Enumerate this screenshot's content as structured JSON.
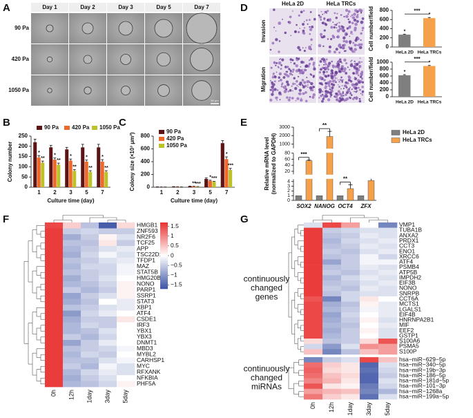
{
  "panel_labels": {
    "a": "A",
    "b": "B",
    "c": "C",
    "d": "D",
    "e": "E",
    "f": "F",
    "g": "G"
  },
  "panel_a": {
    "columns": [
      "Day 1",
      "Day 2",
      "Day 3",
      "Day 5",
      "Day 7"
    ],
    "rows": [
      "90 Pa",
      "420 Pa",
      "1050 Pa"
    ],
    "scale_bar": "50 μm"
  },
  "panel_d_images": {
    "columns": [
      "HeLa 2D",
      "HeLa TRCs"
    ],
    "rows": [
      "Invasion",
      "Migration"
    ]
  },
  "chart_data": [
    {
      "type": "bar",
      "ylabel": "Colony number",
      "xlabel": "Culture time (day)",
      "categories": [
        "1",
        "2",
        "3",
        "5",
        "7"
      ],
      "ylim": [
        0,
        250
      ],
      "yticks": [
        0,
        50,
        100,
        150,
        200,
        250
      ],
      "legend": "top-row",
      "series": [
        {
          "name": "90 Pa",
          "color": "#5c1414",
          "values": [
            220,
            195,
            185,
            195,
            195
          ],
          "errors": [
            15,
            10,
            10,
            15,
            15
          ]
        },
        {
          "name": "420 Pa",
          "color": "#ee6a2c",
          "values": [
            145,
            135,
            130,
            125,
            125
          ],
          "errors": [
            10,
            8,
            8,
            8,
            10
          ],
          "significance": [
            "*",
            "*",
            "*",
            "*",
            "*"
          ]
        },
        {
          "name": "1050 Pa",
          "color": "#bcc22c",
          "values": [
            120,
            110,
            80,
            75,
            75
          ],
          "errors": [
            8,
            8,
            6,
            6,
            6
          ],
          "significance": [
            "**",
            "**",
            "**",
            "**",
            "**"
          ]
        }
      ]
    },
    {
      "type": "bar",
      "ylabel": "Colony size (×10³ μm²)",
      "xlabel": "Culture time (day)",
      "categories": [
        "1",
        "2",
        "3",
        "5",
        "7"
      ],
      "ylim": [
        0,
        800
      ],
      "yticks": [
        0,
        200,
        400,
        600,
        800
      ],
      "legend": "top-left",
      "series": [
        {
          "name": "90 Pa",
          "color": "#5c1414",
          "values": [
            5,
            8,
            15,
            130,
            690
          ],
          "errors": [
            2,
            2,
            3,
            15,
            40
          ]
        },
        {
          "name": "420 Pa",
          "color": "#ee6a2c",
          "values": [
            4,
            7,
            12,
            100,
            440
          ],
          "errors": [
            1,
            2,
            3,
            10,
            35
          ],
          "significance": [
            null,
            null,
            "**",
            "*",
            "*"
          ]
        },
        {
          "name": "1050 Pa",
          "color": "#bcc22c",
          "values": [
            3,
            5,
            9,
            85,
            270
          ],
          "errors": [
            1,
            1,
            2,
            8,
            25
          ],
          "significance": [
            null,
            null,
            "***",
            "***",
            "***"
          ]
        }
      ]
    },
    {
      "type": "bar",
      "ylabel": "Cell number/field",
      "categories": [
        "HeLa 2D",
        "HeLa TRCs"
      ],
      "values": [
        270,
        630
      ],
      "errors": [
        10,
        15
      ],
      "colors": [
        "#7f7f7f",
        "#f5a04a"
      ],
      "ylim": [
        0,
        800
      ],
      "yticks": [
        0,
        200,
        400,
        600,
        800
      ],
      "significance": "***"
    },
    {
      "type": "bar",
      "ylabel": "Cell number/field",
      "categories": [
        "HeLa 2D",
        "HeLa TRCs"
      ],
      "values": [
        620,
        890
      ],
      "errors": [
        20,
        15
      ],
      "colors": [
        "#7f7f7f",
        "#f5a04a"
      ],
      "ylim": [
        0,
        1000
      ],
      "yticks": [
        0,
        200,
        400,
        600,
        800,
        1000
      ],
      "significance": "***"
    },
    {
      "type": "broken-bar",
      "ylabel": [
        "Relative mRNA level",
        "(normalized to GAPDH)"
      ],
      "categories": [
        "SOX2",
        "NANOG",
        "OCT4",
        "ZFX"
      ],
      "y_segments": [
        [
          0,
          4.5
        ],
        [
          10,
          80
        ],
        [
          500,
          3000
        ]
      ],
      "yticks": [
        0,
        1,
        2,
        3,
        4,
        20,
        40,
        60,
        80,
        1000,
        2000,
        3000
      ],
      "legend": "right",
      "series": [
        {
          "name": "HeLa 2D",
          "color": "#7f7f7f",
          "values": [
            1,
            1,
            1,
            1
          ]
        },
        {
          "name": "HeLa TRCs",
          "color": "#f5a04a",
          "values": [
            55,
            1900,
            2.5,
            4.2
          ],
          "errors": [
            2,
            600,
            0.8,
            0.6
          ]
        }
      ],
      "significance": [
        "***",
        "**",
        "**",
        null
      ]
    },
    {
      "type": "heatmap",
      "columns": [
        "0h",
        "12h",
        "1day",
        "3day",
        "5day"
      ],
      "colormap": [
        "#3b53a4",
        "#ffffff",
        "#e8302f"
      ],
      "zlim": [
        -1.7,
        1.7
      ],
      "colorbar_ticks": [
        1.5,
        1,
        0.5,
        0,
        {
          "value": -0.5,
          "label": "−0.5"
        },
        {
          "value": -1,
          "label": "−1"
        },
        {
          "value": -1.5,
          "label": "−1.5"
        }
      ],
      "rows": [
        "HMGB1",
        "ZNF593",
        "NR2F6",
        "TCF25",
        "APP",
        "TSC22D1",
        "TFDP1",
        "MAZ",
        "STAT5B",
        "HMG20B",
        "NONO",
        "PARP1",
        "SSRP1",
        "STAT3",
        "XBP1",
        "ATF4",
        "CSDE1",
        "IRF3",
        "YBX1",
        "YBX3",
        "DNMT1",
        "MBD3",
        "MYBL2",
        "CARHSP1",
        "MYC",
        "RFXANK",
        "NFKBIA",
        "PHF5A"
      ],
      "values": [
        [
          1.5,
          0.4,
          -0.6,
          -1.6,
          0.3
        ],
        [
          1.6,
          -0.5,
          -0.4,
          -0.5,
          -0.5
        ],
        [
          1.6,
          -0.8,
          -0.5,
          0.1,
          -0.3
        ],
        [
          1.6,
          -0.6,
          -0.6,
          0.2,
          -0.5
        ],
        [
          1.6,
          -0.7,
          -0.5,
          -0.3,
          -0.2
        ],
        [
          1.6,
          -0.8,
          -0.4,
          -0.1,
          -0.3
        ],
        [
          1.6,
          -0.6,
          -0.5,
          -0.3,
          -0.2
        ],
        [
          1.6,
          -0.7,
          -0.4,
          -0.4,
          -0.1
        ],
        [
          1.6,
          -0.6,
          -0.5,
          -0.4,
          -0.1
        ],
        [
          1.6,
          -0.8,
          -0.5,
          -0.3,
          0
        ],
        [
          1.6,
          -0.7,
          -0.6,
          -0.4,
          0.1
        ],
        [
          1.6,
          -0.5,
          -0.7,
          -0.5,
          0.1
        ],
        [
          1.6,
          -0.9,
          -0.5,
          -0.3,
          0.1
        ],
        [
          1.6,
          -0.8,
          -0.6,
          0,
          -0.2
        ],
        [
          1.6,
          -0.6,
          -0.5,
          -0.3,
          -0.2
        ],
        [
          1.6,
          -1,
          -0.4,
          -0.2,
          0
        ],
        [
          1.6,
          -0.8,
          -0.5,
          -0.5,
          0.2
        ],
        [
          1.6,
          -0.7,
          -0.4,
          -0.5,
          0
        ],
        [
          1.6,
          -0.7,
          -0.6,
          -0.3,
          0
        ],
        [
          1.6,
          -0.5,
          -0.7,
          -0.4,
          0
        ],
        [
          1.6,
          -0.9,
          -0.5,
          -0.2,
          0
        ],
        [
          1.6,
          -0.6,
          -0.5,
          -0.4,
          -0.1
        ],
        [
          1.6,
          -0.7,
          -0.4,
          -0.5,
          0
        ],
        [
          1.6,
          -0.6,
          -0.6,
          -0.3,
          -0.1
        ],
        [
          1.6,
          -0.5,
          -0.7,
          -0.1,
          -0.3
        ],
        [
          1.6,
          -0.7,
          -0.4,
          -0.2,
          -0.3
        ],
        [
          1.6,
          -0.8,
          -0.5,
          -0.3,
          0
        ],
        [
          1.6,
          -0.7,
          -0.6,
          -0.4,
          0.1
        ]
      ]
    },
    {
      "type": "heatmap",
      "columns": [
        "0h",
        "12h",
        "1day",
        "3day",
        "5day"
      ],
      "colormap": [
        "#3b53a4",
        "#ffffff",
        "#e8302f"
      ],
      "zlim": [
        -1.7,
        1.7
      ],
      "row_groups": [
        {
          "label": [
            "continuously",
            "changed",
            "genes"
          ],
          "rows": [
            "VMP1",
            "TUBA1B",
            "ANXA2",
            "PRDX1",
            "CCT3",
            "ENO1",
            "XRCC6",
            "ATF4",
            "PSMB4",
            "ATP5B",
            "IMPDH2",
            "EIF3B",
            "NONO",
            "SNRPB",
            "CCT6A",
            "MCTS1",
            "LGALS1",
            "EIF4B",
            "HNRNPA2B1",
            "MIF",
            "EEF2",
            "GSTP1",
            "S100A6",
            "PSMA5",
            "S100P"
          ],
          "values": [
            [
              -0.3,
              1.5,
              0.8,
              0,
              -1.2
            ],
            [
              1.6,
              -0.5,
              -0.4,
              -0.3,
              -0.3
            ],
            [
              1.6,
              -0.6,
              -0.5,
              -0.2,
              -0.3
            ],
            [
              1.6,
              -0.7,
              -0.4,
              -0.3,
              -0.2
            ],
            [
              1.6,
              -0.6,
              -0.5,
              -0.2,
              -0.3
            ],
            [
              1.6,
              -0.5,
              -0.6,
              -0.3,
              -0.2
            ],
            [
              1.6,
              -0.6,
              -0.5,
              -0.1,
              -0.4
            ],
            [
              1.6,
              -0.9,
              -0.5,
              -0.1,
              -0.1
            ],
            [
              1.6,
              -0.6,
              -0.5,
              -0.2,
              -0.3
            ],
            [
              1.6,
              -0.5,
              -0.6,
              -0.3,
              -0.2
            ],
            [
              1.6,
              -0.7,
              -0.4,
              -0.2,
              -0.3
            ],
            [
              1.6,
              -0.6,
              -0.5,
              -0.3,
              -0.2
            ],
            [
              1.6,
              -0.5,
              -0.6,
              -0.2,
              -0.3
            ],
            [
              1.6,
              -0.6,
              -0.4,
              -0.3,
              -0.3
            ],
            [
              1.4,
              -1.2,
              -0.4,
              0.2,
              0
            ],
            [
              1.5,
              -0.8,
              -0.6,
              0.1,
              -0.2
            ],
            [
              1.5,
              -0.7,
              -0.5,
              -0.1,
              -0.2
            ],
            [
              1.5,
              -0.9,
              -0.4,
              0,
              -0.2
            ],
            [
              1.5,
              -0.8,
              -0.5,
              0.1,
              -0.3
            ],
            [
              1.5,
              -0.7,
              -0.6,
              0,
              -0.2
            ],
            [
              1.5,
              -0.8,
              -0.5,
              0.1,
              -0.3
            ],
            [
              1.5,
              -0.7,
              -0.5,
              0,
              -0.3
            ],
            [
              0.3,
              -0.6,
              -0.5,
              0.3,
              1.4
            ],
            [
              -0.4,
              -1,
              -0.3,
              0.9,
              0.8
            ],
            [
              0.5,
              -1.2,
              -0.6,
              0.5,
              0.8
            ]
          ]
        },
        {
          "label": [
            "continuously",
            "changed",
            "miRNAs"
          ],
          "rows": [
            "hsa−miR−629−5p",
            "hsa−miR−340−5p",
            "hsa−miR−19b−3p",
            "hsa−miR−186−5p",
            "hsa−miR−181d−5p",
            "hsa−miR−101−3p",
            "hsa−miR−1268a",
            "hsa−miR−199a−5p"
          ],
          "values": [
            [
              -1.2,
              -0.5,
              -0.3,
              1.5,
              0.5
            ],
            [
              1.2,
              0.4,
              0.2,
              -1.5,
              -0.3
            ],
            [
              1.3,
              0.3,
              0.2,
              -1.4,
              -0.4
            ],
            [
              1.2,
              0.5,
              0.3,
              -1.5,
              -0.5
            ],
            [
              1,
              0.6,
              0.2,
              -1.5,
              -0.3
            ],
            [
              1.4,
              0.2,
              0.1,
              -1.3,
              -0.4
            ],
            [
              0.8,
              0.6,
              0.5,
              -1.2,
              -0.7
            ],
            [
              1.1,
              0.4,
              0.2,
              -1.4,
              -0.3
            ]
          ]
        }
      ]
    }
  ]
}
